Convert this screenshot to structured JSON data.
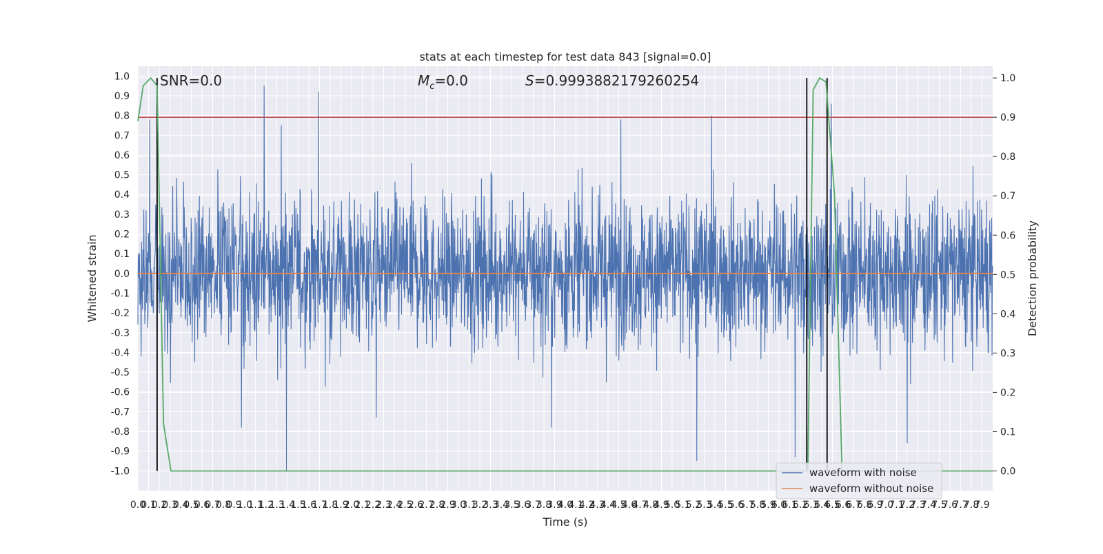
{
  "chart_data": {
    "type": "line",
    "title": "stats at each timestep for test data 843 [signal=0.0]",
    "xlabel": "Time (s)",
    "ylabel_left": "Whitened strain",
    "ylabel_right": "Detection probability",
    "xlim": [
      0.0,
      8.0
    ],
    "ylim_left": [
      -1.1,
      1.05
    ],
    "ylim_right": [
      -0.05,
      1.03
    ],
    "grid": true,
    "x_ticks": [
      "0.0",
      "0.1",
      "0.2",
      "0.3",
      "0.4",
      "0.5",
      "0.6",
      "0.7",
      "0.8",
      "0.9",
      "1.0",
      "1.1",
      "1.2",
      "1.3",
      "1.4",
      "1.5",
      "1.6",
      "1.7",
      "1.8",
      "1.9",
      "2.0",
      "2.1",
      "2.2",
      "2.3",
      "2.4",
      "2.5",
      "2.6",
      "2.7",
      "2.8",
      "2.9",
      "3.0",
      "3.1",
      "3.2",
      "3.3",
      "3.4",
      "3.5",
      "3.6",
      "3.7",
      "3.8",
      "3.9",
      "4.0",
      "4.1",
      "4.2",
      "4.3",
      "4.4",
      "4.5",
      "4.6",
      "4.7",
      "4.8",
      "4.9",
      "5.0",
      "5.1",
      "5.2",
      "5.3",
      "5.4",
      "5.5",
      "5.6",
      "5.7",
      "5.8",
      "5.9",
      "6.0",
      "6.1",
      "6.2",
      "6.3",
      "6.4",
      "6.5",
      "6.6",
      "6.7",
      "6.8",
      "6.9",
      "7.0",
      "7.1",
      "7.2",
      "7.3",
      "7.4",
      "7.5",
      "7.6",
      "7.7",
      "7.8",
      "7.9"
    ],
    "y_ticks_left": [
      "1.0",
      "0.9",
      "0.8",
      "0.7",
      "0.6",
      "0.5",
      "0.4",
      "0.3",
      "0.2",
      "0.1",
      "0.0",
      "-0.1",
      "-0.2",
      "-0.3",
      "-0.4",
      "-0.5",
      "-0.6",
      "-0.7",
      "-0.8",
      "-0.9",
      "-1.0"
    ],
    "y_ticks_right": [
      "1.0",
      "0.9",
      "0.8",
      "0.7",
      "0.6",
      "0.5",
      "0.4",
      "0.3",
      "0.2",
      "0.1",
      "0.0"
    ],
    "annotations": {
      "snr": "SNR=0.0",
      "mc_symbol": "M",
      "mc_sub": "c",
      "mc_value": "=0.0",
      "s_symbol": "S",
      "s_value": "=0.9993882179260254"
    },
    "legend": {
      "placement": "lower-right",
      "entries": [
        "waveform with noise",
        "waveform without noise"
      ]
    },
    "colors": {
      "noise": "#4c72b0",
      "clean": "#dd8452",
      "probability": "#55a868",
      "threshold": "#c44e52",
      "markers": "#000000",
      "axes_bg": "#eaeaf2"
    },
    "series": [
      {
        "name": "waveform with noise",
        "axis": "left",
        "envelope_max": 0.95,
        "envelope_min": -1.0,
        "prominent_peaks": [
          {
            "x": 0.11,
            "y": 0.78
          },
          {
            "x": 1.18,
            "y": 0.95
          },
          {
            "x": 1.69,
            "y": 0.92
          },
          {
            "x": 1.34,
            "y": 0.75
          },
          {
            "x": 4.52,
            "y": 0.78
          },
          {
            "x": 5.37,
            "y": 0.8
          },
          {
            "x": 6.49,
            "y": 0.86
          },
          {
            "x": 1.39,
            "y": -1.0
          },
          {
            "x": 5.23,
            "y": -0.95
          },
          {
            "x": 6.15,
            "y": -0.93
          },
          {
            "x": 7.2,
            "y": -0.86
          },
          {
            "x": 3.87,
            "y": -0.78
          },
          {
            "x": 0.97,
            "y": -0.78
          },
          {
            "x": 2.23,
            "y": -0.73
          }
        ]
      },
      {
        "name": "waveform without noise",
        "axis": "left",
        "constant": 0.0
      },
      {
        "axis": "right",
        "x": [
          0.0,
          0.05,
          0.12,
          0.18,
          0.24,
          0.31,
          1.0,
          2.0,
          3.0,
          4.0,
          5.0,
          6.0,
          6.27,
          6.32,
          6.38,
          6.44,
          6.52,
          6.59,
          7.0,
          8.0
        ],
        "y": [
          0.89,
          0.98,
          1.0,
          0.98,
          0.12,
          0.0,
          0.0,
          0.0,
          0.0,
          0.0,
          0.0,
          0.0,
          0.0,
          0.97,
          1.0,
          0.99,
          0.7,
          0.0,
          0.0,
          0.0
        ]
      }
    ],
    "threshold_right": 0.9,
    "vertical_markers_x": [
      0.18,
      6.26,
      6.45
    ]
  }
}
